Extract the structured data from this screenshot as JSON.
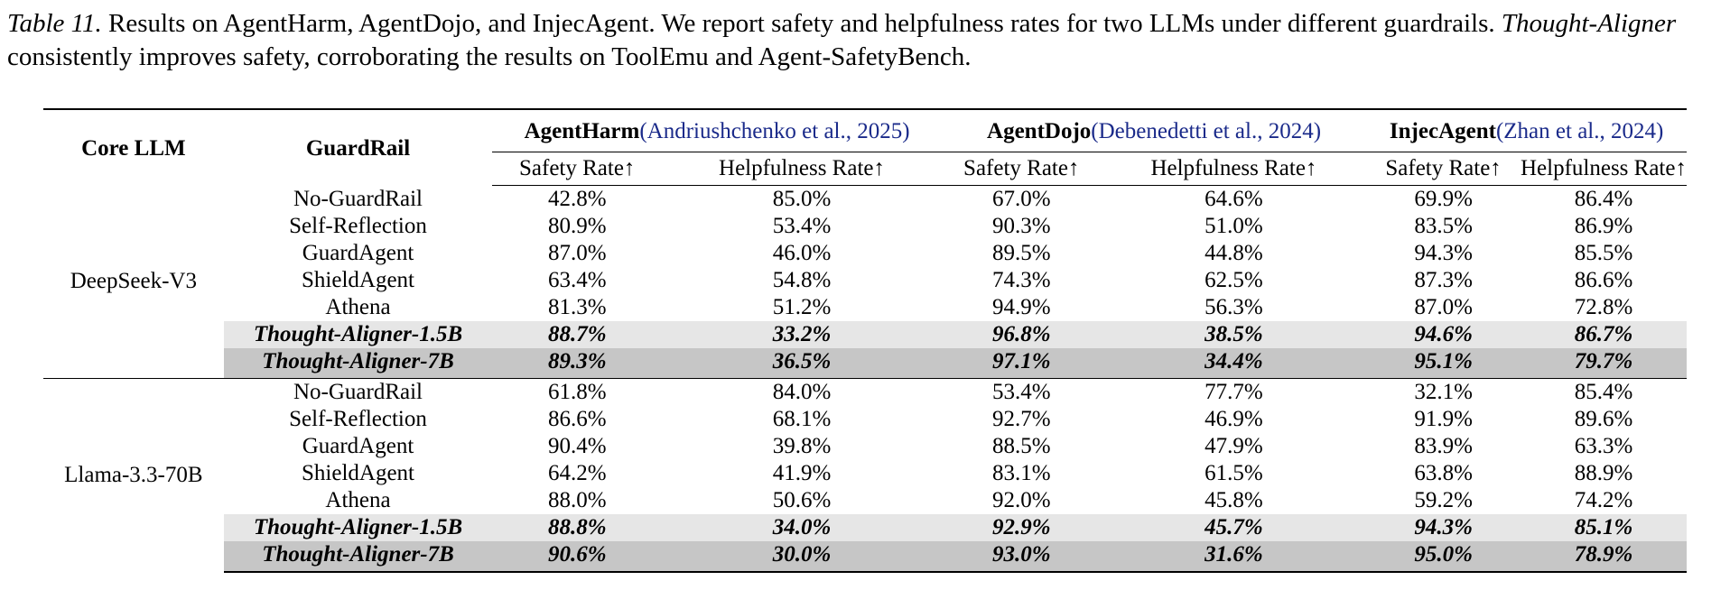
{
  "caption": {
    "label": "Table 11.",
    "text_1": " Results on AgentHarm, AgentDojo, and InjecAgent. We report safety and helpfulness rates for two LLMs under different guardrails. ",
    "method": "Thought-Aligner",
    "text_2": " consistently improves safety, corroborating the results on ToolEmu and Agent-SafetyBench."
  },
  "table": {
    "col_core_llm": "Core LLM",
    "col_guardrail": "GuardRail",
    "benchmarks": [
      {
        "name": "AgentHarm",
        "cite_open": "(",
        "cite_authors": "Andriushchenko et al.",
        "cite_sep": ", ",
        "cite_year": "2025",
        "cite_close": ")"
      },
      {
        "name": "AgentDojo",
        "cite_open": "(",
        "cite_authors": "Debenedetti et al.",
        "cite_sep": ", ",
        "cite_year": "2024",
        "cite_close": ")"
      },
      {
        "name": "InjecAgent",
        "cite_open": "(",
        "cite_authors": "Zhan et al.",
        "cite_sep": ", ",
        "cite_year": "2024",
        "cite_close": ")"
      }
    ],
    "metric_safety": "Safety Rate↑",
    "metric_helpfulness": "Helpfulness Rate↑",
    "groups": [
      {
        "llm": "DeepSeek-V3",
        "rows": [
          {
            "guardrail": "No-GuardRail",
            "values": [
              "42.8%",
              "85.0%",
              "67.0%",
              "64.6%",
              "69.9%",
              "86.4%"
            ]
          },
          {
            "guardrail": "Self-Reflection",
            "values": [
              "80.9%",
              "53.4%",
              "90.3%",
              "51.0%",
              "83.5%",
              "86.9%"
            ]
          },
          {
            "guardrail": "GuardAgent",
            "values": [
              "87.0%",
              "46.0%",
              "89.5%",
              "44.8%",
              "94.3%",
              "85.5%"
            ]
          },
          {
            "guardrail": "ShieldAgent",
            "values": [
              "63.4%",
              "54.8%",
              "74.3%",
              "62.5%",
              "87.3%",
              "86.6%"
            ]
          },
          {
            "guardrail": "Athena",
            "values": [
              "81.3%",
              "51.2%",
              "94.9%",
              "56.3%",
              "87.0%",
              "72.8%"
            ]
          },
          {
            "guardrail": "Thought-Aligner-1.5B",
            "values": [
              "88.7%",
              "33.2%",
              "96.8%",
              "38.5%",
              "94.6%",
              "86.7%"
            ]
          },
          {
            "guardrail": "Thought-Aligner-7B",
            "values": [
              "89.3%",
              "36.5%",
              "97.1%",
              "34.4%",
              "95.1%",
              "79.7%"
            ]
          }
        ]
      },
      {
        "llm": "Llama-3.3-70B",
        "rows": [
          {
            "guardrail": "No-GuardRail",
            "values": [
              "61.8%",
              "84.0%",
              "53.4%",
              "77.7%",
              "32.1%",
              "85.4%"
            ]
          },
          {
            "guardrail": "Self-Reflection",
            "values": [
              "86.6%",
              "68.1%",
              "92.7%",
              "46.9%",
              "91.9%",
              "89.6%"
            ]
          },
          {
            "guardrail": "GuardAgent",
            "values": [
              "90.4%",
              "39.8%",
              "88.5%",
              "47.9%",
              "83.9%",
              "63.3%"
            ]
          },
          {
            "guardrail": "ShieldAgent",
            "values": [
              "64.2%",
              "41.9%",
              "83.1%",
              "61.5%",
              "63.8%",
              "88.9%"
            ]
          },
          {
            "guardrail": "Athena",
            "values": [
              "88.0%",
              "50.6%",
              "92.0%",
              "45.8%",
              "59.2%",
              "74.2%"
            ]
          },
          {
            "guardrail": "Thought-Aligner-1.5B",
            "values": [
              "88.8%",
              "34.0%",
              "92.9%",
              "45.7%",
              "94.3%",
              "85.1%"
            ]
          },
          {
            "guardrail": "Thought-Aligner-7B",
            "values": [
              "90.6%",
              "30.0%",
              "93.0%",
              "31.6%",
              "95.0%",
              "78.9%"
            ]
          }
        ]
      }
    ]
  },
  "colors": {
    "citation": "#1a2a8a",
    "highlight_1_5b": "#e6e6e6",
    "highlight_7b": "#c6c6c6"
  }
}
